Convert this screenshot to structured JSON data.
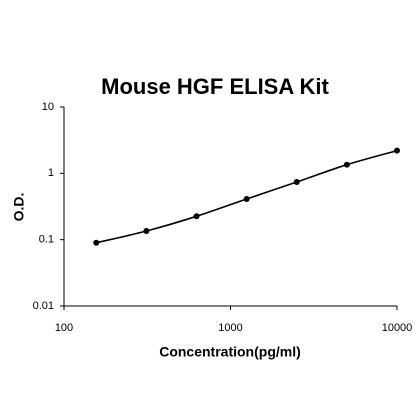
{
  "chart_data": {
    "type": "scatter",
    "title": "Mouse HGF ELISA Kit",
    "xlabel": "Concentration(pg/ml)",
    "ylabel": "O.D.",
    "x": [
      156.25,
      312.5,
      625,
      1250,
      2500,
      5000,
      10000
    ],
    "values": [
      0.09,
      0.135,
      0.225,
      0.41,
      0.74,
      1.35,
      2.2
    ],
    "color": "#000000",
    "xlim": [
      100,
      10000
    ],
    "ylim": [
      0.01,
      10
    ],
    "xticks": [
      100,
      1000,
      10000
    ],
    "yticks": [
      0.01,
      0.1,
      1,
      10
    ],
    "xscale": "log",
    "yscale": "log"
  }
}
